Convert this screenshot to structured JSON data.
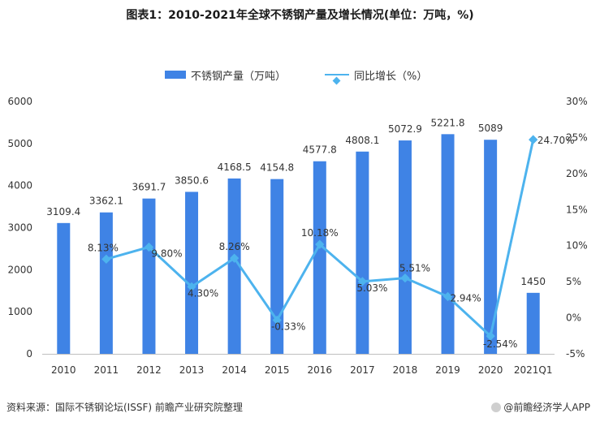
{
  "title": "图表1：2010-2021年全球不锈钢产量及增长情况(单位：万吨，%)",
  "legend": {
    "bar_label": "不锈钢产量（万吨）",
    "line_label": "同比增长（%）"
  },
  "footer": {
    "source": "资料来源：国际不锈钢论坛(ISSF) 前瞻产业研究院整理",
    "brand": "@前瞻经济学人APP"
  },
  "colors": {
    "bar": "#3f83e5",
    "line": "#4db3ee",
    "grid": "#e8e8e8"
  },
  "chart_data": {
    "type": "bar",
    "categories": [
      "2010",
      "2011",
      "2012",
      "2013",
      "2014",
      "2015",
      "2016",
      "2017",
      "2018",
      "2019",
      "2020",
      "2021Q1"
    ],
    "series": [
      {
        "name": "不锈钢产量（万吨）",
        "type": "bar",
        "axis": "left",
        "values": [
          3109.4,
          3362.1,
          3691.7,
          3850.6,
          4168.5,
          4154.8,
          4577.8,
          4808.1,
          5072.9,
          5221.8,
          5089,
          1450
        ],
        "labels": [
          "3109.4",
          "3362.1",
          "3691.7",
          "3850.6",
          "4168.5",
          "4154.8",
          "4577.8",
          "4808.1",
          "5072.9",
          "5221.8",
          "5089",
          "1450"
        ]
      },
      {
        "name": "同比增长（%）",
        "type": "line",
        "axis": "right",
        "values": [
          null,
          8.13,
          9.8,
          4.3,
          8.26,
          -0.33,
          10.18,
          5.03,
          5.51,
          2.94,
          -2.54,
          24.7
        ],
        "labels": [
          "",
          "8.13%",
          "9.80%",
          "4.30%",
          "8.26%",
          "-0.33%",
          "10.18%",
          "5.03%",
          "5.51%",
          "2.94%",
          "-2.54%",
          "24.70%"
        ]
      }
    ],
    "y_left": {
      "ylim": [
        0,
        6000
      ],
      "ticks": [
        "0",
        "1000",
        "2000",
        "3000",
        "4000",
        "5000",
        "6000"
      ]
    },
    "y_right": {
      "ylim": [
        -5,
        30
      ],
      "ticks": [
        "-5%",
        "0%",
        "5%",
        "10%",
        "15%",
        "20%",
        "25%",
        "30%"
      ]
    },
    "grid": true,
    "legend_position": "top"
  }
}
